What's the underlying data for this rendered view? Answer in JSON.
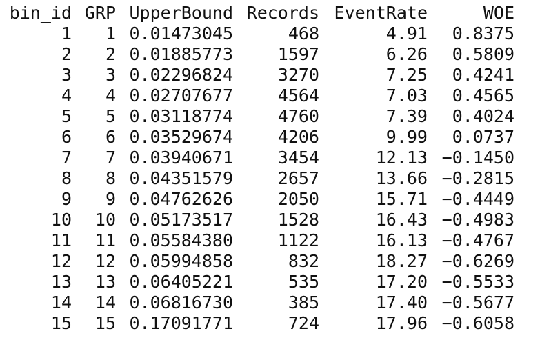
{
  "table": {
    "columns": [
      "bin_id",
      "GRP",
      "UpperBound",
      "Records",
      "EventRate",
      "WOE"
    ],
    "rows": [
      [
        "1",
        "1",
        "0.01473045",
        "468",
        "4.91",
        "0.8375"
      ],
      [
        "2",
        "2",
        "0.01885773",
        "1597",
        "6.26",
        "0.5809"
      ],
      [
        "3",
        "3",
        "0.02296824",
        "3270",
        "7.25",
        "0.4241"
      ],
      [
        "4",
        "4",
        "0.02707677",
        "4564",
        "7.03",
        "0.4565"
      ],
      [
        "5",
        "5",
        "0.03118774",
        "4760",
        "7.39",
        "0.4024"
      ],
      [
        "6",
        "6",
        "0.03529674",
        "4206",
        "9.99",
        "0.0737"
      ],
      [
        "7",
        "7",
        "0.03940671",
        "3454",
        "12.13",
        "-0.1450"
      ],
      [
        "8",
        "8",
        "0.04351579",
        "2657",
        "13.66",
        "-0.2815"
      ],
      [
        "9",
        "9",
        "0.04762626",
        "2050",
        "15.71",
        "-0.4449"
      ],
      [
        "10",
        "10",
        "0.05173517",
        "1528",
        "16.43",
        "-0.4983"
      ],
      [
        "11",
        "11",
        "0.05584380",
        "1122",
        "16.13",
        "-0.4767"
      ],
      [
        "12",
        "12",
        "0.05994858",
        "832",
        "18.27",
        "-0.6269"
      ],
      [
        "13",
        "13",
        "0.06405221",
        "535",
        "17.20",
        "-0.5533"
      ],
      [
        "14",
        "14",
        "0.06816730",
        "385",
        "17.40",
        "-0.5677"
      ],
      [
        "15",
        "15",
        "0.17091771",
        "724",
        "17.96",
        "-0.6058"
      ]
    ]
  }
}
